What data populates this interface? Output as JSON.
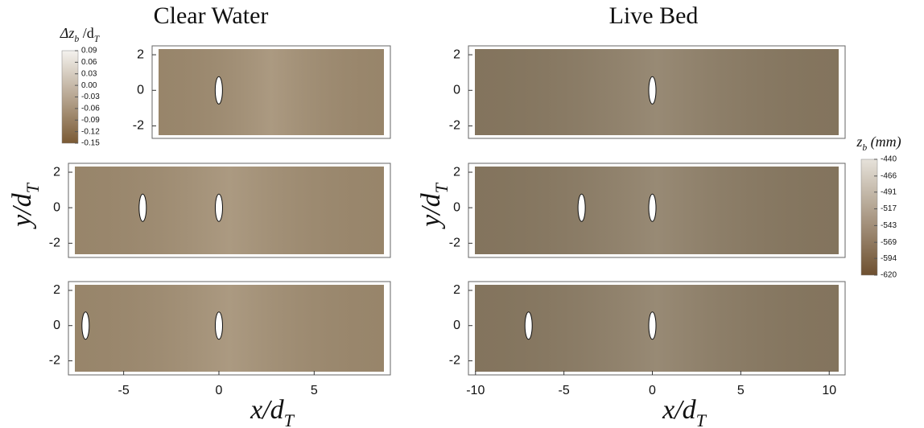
{
  "labels": {
    "left_title": "Clear Water",
    "right_title": "Live Bed",
    "y_label_left": {
      "main": "y/d",
      "sub": "T"
    },
    "y_label_right": {
      "main": "y/d",
      "sub": "T"
    },
    "x_label_left": {
      "main": "x/d",
      "sub": "T"
    },
    "x_label_right": {
      "main": "x/d",
      "sub": "T"
    }
  },
  "chart_data": [
    {
      "type": "surface",
      "xlim": [
        -3.5,
        9.0
      ],
      "ylim": [
        -2.7,
        2.5
      ],
      "yticks": [
        2,
        0,
        -2
      ],
      "turbines": [
        0
      ],
      "color": "#a08c70"
    },
    {
      "type": "surface",
      "xlim": [
        -7.9,
        9.0
      ],
      "ylim": [
        -2.8,
        2.5
      ],
      "yticks": [
        2,
        0,
        -2
      ],
      "turbines": [
        -4,
        0
      ],
      "color": "#a08c70"
    },
    {
      "type": "surface",
      "xlim": [
        -7.9,
        9.0
      ],
      "ylim": [
        -2.8,
        2.5
      ],
      "yticks": [
        2,
        0,
        -2
      ],
      "xticks": [
        -5,
        0,
        5
      ],
      "turbines": [
        -7,
        0
      ],
      "color": "#a08c70"
    },
    {
      "type": "surface",
      "xlim": [
        -10.4,
        10.9
      ],
      "ylim": [
        -2.7,
        2.5
      ],
      "yticks": [
        2,
        0,
        -2
      ],
      "turbines": [
        0
      ],
      "color": "#8a7a62"
    },
    {
      "type": "surface",
      "xlim": [
        -10.4,
        10.9
      ],
      "ylim": [
        -2.8,
        2.5
      ],
      "yticks": [
        2,
        0,
        -2
      ],
      "turbines": [
        -4,
        0
      ],
      "color": "#8a7a62"
    },
    {
      "type": "surface",
      "xlim": [
        -10.4,
        10.9
      ],
      "ylim": [
        -2.8,
        2.5
      ],
      "yticks": [
        2,
        0,
        -2
      ],
      "xticks": [
        -10,
        -5,
        0,
        5,
        10
      ],
      "turbines": [
        -7,
        0
      ],
      "color": "#8a7a62"
    },
    {
      "type": "colorbar",
      "title": {
        "main": "Δz",
        "sub": "b",
        "rest": " /d",
        "sub2": "T"
      },
      "clim": [
        -0.15,
        0.09
      ],
      "ticks": [
        0.09,
        0.06,
        0.03,
        {
          "value": 0,
          "label": "0.00"
        },
        -0.03,
        -0.06,
        -0.09,
        -0.12,
        -0.15
      ],
      "colors": [
        "#7a5a34",
        "#f4f2ee"
      ]
    },
    {
      "type": "colorbar",
      "title": {
        "main": "z",
        "sub": "b",
        "rest": " (mm)"
      },
      "clim": [
        -620,
        -440
      ],
      "ticks": [
        -440,
        -466,
        -491,
        -517,
        -543,
        -569,
        -594,
        -620
      ],
      "colors": [
        "#6e5030",
        "#e6e2da"
      ]
    }
  ]
}
